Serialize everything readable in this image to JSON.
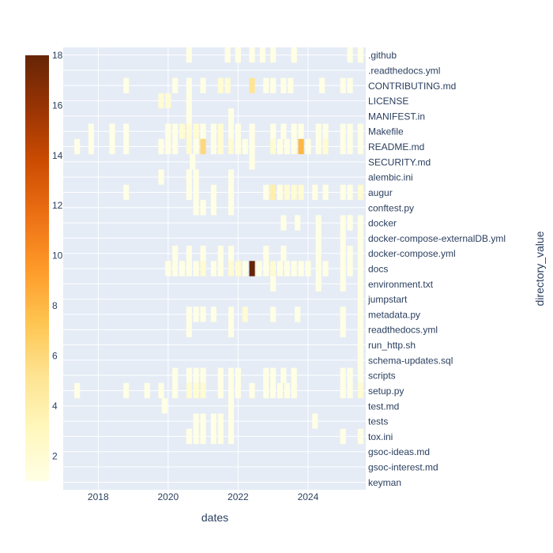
{
  "chart_data": {
    "type": "heatmap",
    "x_axis": {
      "label": "dates",
      "range": [
        2017.0,
        2025.65
      ],
      "ticks": [
        2018,
        2020,
        2022,
        2024
      ],
      "tick_labels": [
        "2018",
        "2020",
        "2022",
        "2024"
      ],
      "grid": true
    },
    "y_axis": {
      "label": "directory_value",
      "side": "right",
      "categories": [
        ".github",
        ".readthedocs.yml",
        "CONTRIBUTING.md",
        "LICENSE",
        "MANIFEST.in",
        "Makefile",
        "README.md",
        "SECURITY.md",
        "alembic.ini",
        "augur",
        "conftest.py",
        "docker",
        "docker-compose-externalDB.yml",
        "docker-compose.yml",
        "docs",
        "environment.txt",
        "jumpstart",
        "metadata.py",
        "readthedocs.yml",
        "run_http.sh",
        "schema-updates.sql",
        "scripts",
        "setup.py",
        "test.md",
        "tests",
        "tox.ini",
        "gsoc-ideas.md",
        "gsoc-interest.md",
        "keyman"
      ],
      "grid": true
    },
    "colorbar": {
      "range": [
        1,
        18
      ],
      "ticks": [
        2,
        4,
        6,
        8,
        10,
        12,
        14,
        16,
        18
      ],
      "tick_labels": [
        "2",
        "4",
        "6",
        "8",
        "10",
        "12",
        "14",
        "16",
        "18"
      ],
      "colorscale": "YlOrBr",
      "stops": [
        "#ffffe5",
        "#fff7bc",
        "#fee391",
        "#fec44f",
        "#fe9929",
        "#ec7014",
        "#cc4c02",
        "#993404",
        "#662506"
      ]
    },
    "cell_width_years": 0.16,
    "cells": [
      {
        "y": ".github",
        "x": [
          2020.6,
          2021.7,
          2022.0,
          2022.4,
          2022.7,
          2023.0,
          2023.6,
          2025.2,
          2025.5
        ],
        "v": [
          1,
          1,
          1,
          1,
          1,
          1,
          1,
          1,
          1
        ]
      },
      {
        "y": "CONTRIBUTING.md",
        "x": [
          2018.8,
          2020.2,
          2020.6,
          2021.0,
          2021.5,
          2021.7,
          2022.4,
          2022.8,
          2023.0,
          2023.3,
          2023.5,
          2024.4,
          2025.0,
          2025.2
        ],
        "v": [
          1,
          1,
          1,
          1,
          2,
          2,
          5,
          1,
          1,
          1,
          1,
          1,
          1,
          1
        ]
      },
      {
        "y": "LICENSE",
        "x": [
          2019.8,
          2020.0,
          2020.6
        ],
        "v": [
          2,
          2,
          1
        ]
      },
      {
        "y": "MANIFEST.in",
        "x": [
          2020.6,
          2021.8
        ],
        "v": [
          1,
          1
        ]
      },
      {
        "y": "Makefile",
        "x": [
          2017.8,
          2018.4,
          2018.8,
          2020.0,
          2020.2,
          2020.4,
          2020.6,
          2020.8,
          2021.0,
          2021.3,
          2021.5,
          2021.8,
          2022.0,
          2022.4,
          2023.0,
          2023.3,
          2023.6,
          2023.8,
          2024.3,
          2024.5,
          2025.0,
          2025.2,
          2025.5
        ],
        "v": [
          1,
          1,
          1,
          1,
          1,
          2,
          2,
          2,
          1,
          1,
          2,
          1,
          1,
          1,
          1,
          1,
          1,
          1,
          1,
          1,
          1,
          1,
          1
        ]
      },
      {
        "y": "README.md",
        "x": [
          2017.4,
          2017.8,
          2018.4,
          2018.8,
          2019.8,
          2020.0,
          2020.2,
          2020.6,
          2020.8,
          2021.0,
          2021.3,
          2021.5,
          2021.8,
          2022.0,
          2022.2,
          2022.4,
          2023.0,
          2023.2,
          2023.4,
          2023.6,
          2023.8,
          2024.0,
          2024.3,
          2024.5,
          2025.0,
          2025.2,
          2025.5
        ],
        "v": [
          1,
          1,
          1,
          1,
          1,
          1,
          1,
          2,
          1,
          6,
          1,
          2,
          2,
          1,
          1,
          1,
          2,
          1,
          1,
          1,
          8,
          1,
          1,
          2,
          1,
          1,
          1
        ]
      },
      {
        "y": "SECURITY.md",
        "x": [
          2020.7,
          2022.4
        ],
        "v": [
          1,
          1
        ]
      },
      {
        "y": "alembic.ini",
        "x": [
          2019.8,
          2020.6,
          2020.8,
          2021.8
        ],
        "v": [
          1,
          1,
          1,
          1
        ]
      },
      {
        "y": "augur",
        "x": [
          2018.8,
          2020.6,
          2020.8,
          2021.3,
          2021.8,
          2022.8,
          2023.0,
          2023.2,
          2023.4,
          2023.6,
          2023.8,
          2024.2,
          2024.5,
          2025.0,
          2025.2,
          2025.5
        ],
        "v": [
          1,
          1,
          1,
          1,
          1,
          1,
          4,
          1,
          2,
          2,
          2,
          1,
          1,
          1,
          1,
          2
        ]
      },
      {
        "y": "conftest.py",
        "x": [
          2020.8,
          2021.0,
          2021.3,
          2021.8
        ],
        "v": [
          1,
          1,
          1,
          1
        ]
      },
      {
        "y": "docker",
        "x": [
          2023.3,
          2023.7,
          2024.3,
          2025.0,
          2025.2,
          2025.5
        ],
        "v": [
          1,
          1,
          1,
          1,
          1,
          1
        ]
      },
      {
        "y": "docker-compose-externalDB.yml",
        "x": [
          2024.3,
          2025.0,
          2025.5
        ],
        "v": [
          1,
          1,
          1
        ]
      },
      {
        "y": "docker-compose.yml",
        "x": [
          2020.2,
          2020.6,
          2021.0,
          2021.5,
          2021.8,
          2022.8,
          2023.3,
          2024.3,
          2025.0,
          2025.2,
          2025.5
        ],
        "v": [
          1,
          1,
          1,
          1,
          1,
          1,
          1,
          1,
          1,
          1,
          1
        ]
      },
      {
        "y": "docs",
        "x": [
          2020.0,
          2020.2,
          2020.4,
          2020.6,
          2020.8,
          2021.0,
          2021.3,
          2021.5,
          2021.8,
          2022.0,
          2022.2,
          2022.4,
          2022.6,
          2022.8,
          2023.0,
          2023.2,
          2023.4,
          2023.6,
          2023.8,
          2024.0,
          2024.3,
          2024.5,
          2025.0,
          2025.2,
          2025.5
        ],
        "v": [
          1,
          1,
          1,
          1,
          1,
          2,
          1,
          1,
          2,
          2,
          1,
          18,
          1,
          1,
          2,
          1,
          1,
          1,
          1,
          1,
          1,
          1,
          1,
          1,
          1
        ]
      },
      {
        "y": "environment.txt",
        "x": [
          2023.0,
          2024.3,
          2025.0,
          2025.5
        ],
        "v": [
          1,
          1,
          1,
          1
        ]
      },
      {
        "y": "jumpstart",
        "x": [
          2025.5
        ],
        "v": [
          1
        ]
      },
      {
        "y": "metadata.py",
        "x": [
          2020.6,
          2020.8,
          2021.0,
          2021.3,
          2021.8,
          2022.2,
          2023.0,
          2023.7,
          2025.0,
          2025.5
        ],
        "v": [
          1,
          1,
          1,
          1,
          1,
          2,
          1,
          1,
          1,
          1
        ]
      },
      {
        "y": "readthedocs.yml",
        "x": [
          2020.6,
          2021.8,
          2025.0,
          2025.5
        ],
        "v": [
          1,
          1,
          1,
          1
        ]
      },
      {
        "y": "run_http.sh",
        "x": [
          2025.5
        ],
        "v": [
          1
        ]
      },
      {
        "y": "schema-updates.sql",
        "x": [
          2025.5
        ],
        "v": [
          1
        ]
      },
      {
        "y": "scripts",
        "x": [
          2020.2,
          2020.6,
          2020.8,
          2021.0,
          2021.5,
          2021.8,
          2022.0,
          2022.8,
          2023.0,
          2023.3,
          2023.6,
          2025.0,
          2025.2,
          2025.5
        ],
        "v": [
          1,
          1,
          1,
          1,
          1,
          1,
          1,
          1,
          1,
          1,
          1,
          1,
          1,
          1
        ]
      },
      {
        "y": "setup.py",
        "x": [
          2017.4,
          2018.8,
          2019.4,
          2019.8,
          2020.2,
          2020.6,
          2020.8,
          2021.0,
          2021.5,
          2021.8,
          2022.0,
          2022.4,
          2022.8,
          2023.0,
          2023.2,
          2023.4,
          2023.6,
          2025.0,
          2025.2,
          2025.5
        ],
        "v": [
          1,
          1,
          1,
          1,
          1,
          2,
          2,
          2,
          1,
          1,
          1,
          1,
          1,
          1,
          1,
          1,
          1,
          1,
          1,
          2
        ]
      },
      {
        "y": "test.md",
        "x": [
          2019.9,
          2021.8
        ],
        "v": [
          1,
          1
        ]
      },
      {
        "y": "tests",
        "x": [
          2020.8,
          2021.0,
          2021.3,
          2021.5,
          2021.8,
          2024.2
        ],
        "v": [
          1,
          1,
          1,
          1,
          1,
          1
        ]
      },
      {
        "y": "tox.ini",
        "x": [
          2020.6,
          2020.8,
          2021.0,
          2021.3,
          2021.5,
          2021.8,
          2025.0,
          2025.5
        ],
        "v": [
          1,
          1,
          1,
          1,
          1,
          1,
          1,
          1
        ]
      }
    ]
  }
}
